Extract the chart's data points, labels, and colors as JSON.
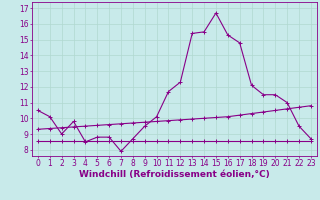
{
  "xlabel": "Windchill (Refroidissement éolien,°C)",
  "bg_color": "#c8eaea",
  "line_color": "#880088",
  "grid_color": "#b0d8d0",
  "x_ticks": [
    0,
    1,
    2,
    3,
    4,
    5,
    6,
    7,
    8,
    9,
    10,
    11,
    12,
    13,
    14,
    15,
    16,
    17,
    18,
    19,
    20,
    21,
    22,
    23
  ],
  "y_ticks": [
    8,
    9,
    10,
    11,
    12,
    13,
    14,
    15,
    16,
    17
  ],
  "ylim": [
    7.6,
    17.4
  ],
  "xlim": [
    -0.5,
    23.5
  ],
  "line1_x": [
    0,
    1,
    2,
    3,
    4,
    5,
    6,
    7,
    8,
    9,
    10,
    11,
    12,
    13,
    14,
    15,
    16,
    17,
    18,
    19,
    20,
    21,
    22,
    23
  ],
  "line1_y": [
    10.5,
    10.1,
    9.0,
    9.8,
    8.5,
    8.8,
    8.8,
    7.9,
    8.7,
    9.5,
    10.1,
    11.7,
    12.3,
    15.4,
    15.5,
    16.7,
    15.3,
    14.8,
    12.1,
    11.5,
    11.5,
    11.0,
    9.5,
    8.7
  ],
  "line2_x": [
    0,
    1,
    2,
    3,
    4,
    5,
    6,
    7,
    8,
    9,
    10,
    11,
    12,
    13,
    14,
    15,
    16,
    17,
    18,
    19,
    20,
    21,
    22,
    23
  ],
  "line2_y": [
    9.3,
    9.35,
    9.4,
    9.45,
    9.5,
    9.55,
    9.6,
    9.65,
    9.7,
    9.75,
    9.8,
    9.85,
    9.9,
    9.95,
    10.0,
    10.05,
    10.1,
    10.2,
    10.3,
    10.4,
    10.5,
    10.6,
    10.7,
    10.8
  ],
  "line3_x": [
    0,
    1,
    2,
    3,
    4,
    5,
    6,
    7,
    8,
    9,
    10,
    11,
    12,
    13,
    14,
    15,
    16,
    17,
    18,
    19,
    20,
    21,
    22,
    23
  ],
  "line3_y": [
    8.55,
    8.55,
    8.55,
    8.55,
    8.55,
    8.55,
    8.55,
    8.55,
    8.55,
    8.55,
    8.55,
    8.55,
    8.55,
    8.55,
    8.55,
    8.55,
    8.55,
    8.55,
    8.55,
    8.55,
    8.55,
    8.55,
    8.55,
    8.55
  ],
  "marker": "+",
  "markersize": 3,
  "markeredgewidth": 0.7,
  "linewidth": 0.8,
  "tick_fontsize": 5.5,
  "xlabel_fontsize": 6.5
}
